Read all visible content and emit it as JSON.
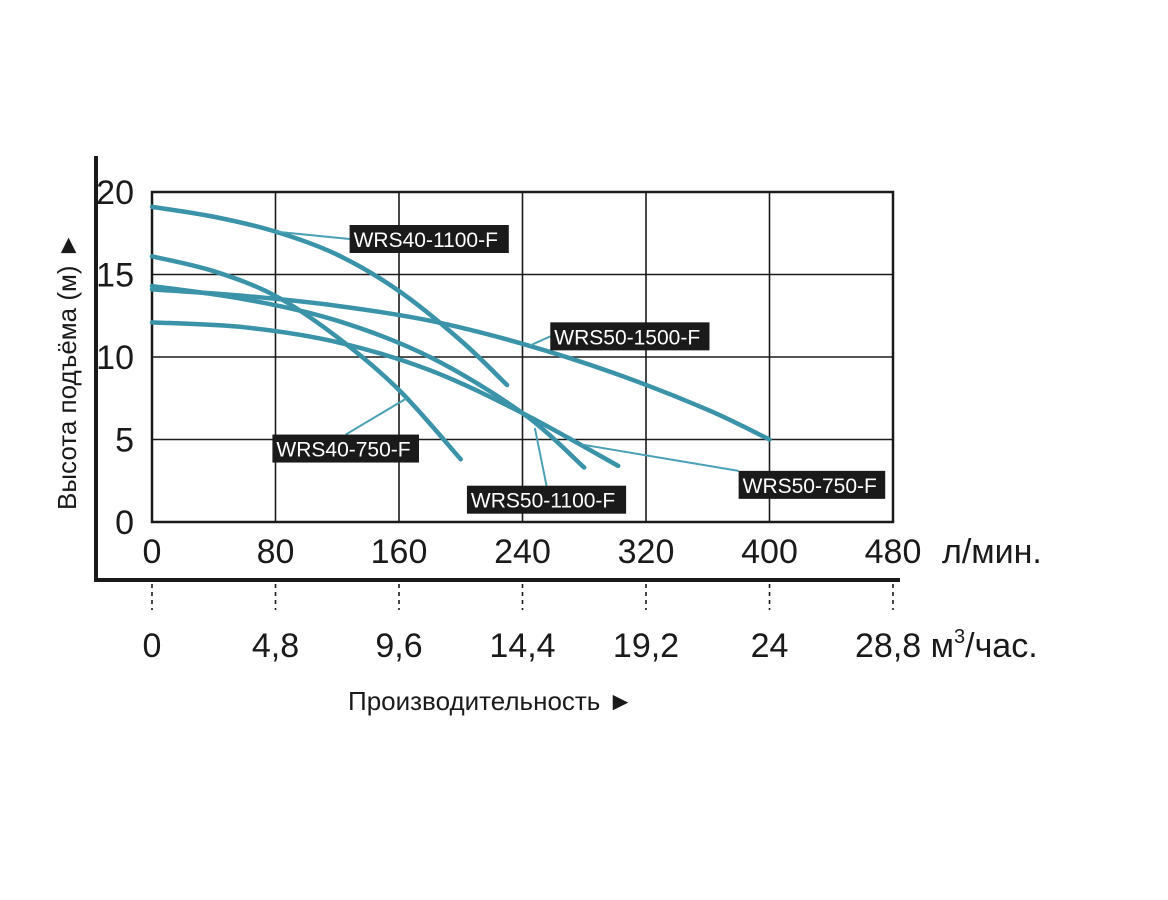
{
  "chart_data": {
    "type": "line",
    "xlabel": "Производительность ►",
    "ylabel": "Высота подъёма (м) ►",
    "x_unit": "л/мин.",
    "x2_unit_base": "28,8 м",
    "x2_unit_sup": "3",
    "x2_unit_tail": "/час.",
    "xlim": [
      0,
      480
    ],
    "ylim": [
      0,
      20
    ],
    "grid": true,
    "x_ticks": [
      "0",
      "80",
      "160",
      "240",
      "320",
      "400",
      "480"
    ],
    "x_tick_values": [
      0,
      80,
      160,
      240,
      320,
      400,
      480
    ],
    "x2_ticks": [
      "0",
      "4,8",
      "9,6",
      "14,4",
      "19,2",
      "24"
    ],
    "y_ticks": [
      "0",
      "5",
      "10",
      "15",
      "20"
    ],
    "y_tick_values": [
      0,
      5,
      10,
      15,
      20
    ],
    "curve_color": "#3a93a8",
    "series": [
      {
        "name": "WRS40-1100-F",
        "x": [
          0,
          40,
          80,
          120,
          160,
          200,
          230
        ],
        "y": [
          19.1,
          18.5,
          17.6,
          16.2,
          14.0,
          11.0,
          8.3
        ],
        "label_at": [
          80,
          17.6
        ],
        "label_pos": [
          128,
          18.0
        ]
      },
      {
        "name": "WRS50-1500-F",
        "x": [
          0,
          60,
          120,
          180,
          240,
          300,
          360,
          400
        ],
        "y": [
          14.1,
          13.7,
          13.1,
          12.2,
          10.8,
          9.0,
          6.8,
          5.0
        ],
        "label_at": [
          245,
          10.7
        ],
        "label_pos": [
          258,
          12.1
        ]
      },
      {
        "name": "WRS40-750-F",
        "x": [
          0,
          40,
          80,
          120,
          160,
          200
        ],
        "y": [
          16.1,
          15.2,
          13.7,
          11.2,
          8.0,
          3.8
        ],
        "label_at": [
          165,
          7.5
        ],
        "label_pos": [
          78,
          5.3
        ]
      },
      {
        "name": "WRS50-1100-F",
        "x": [
          0,
          60,
          120,
          180,
          240,
          280
        ],
        "y": [
          14.3,
          13.5,
          12.2,
          10.0,
          6.6,
          3.3
        ],
        "label_at": [
          248,
          5.7
        ],
        "label_pos": [
          204,
          2.2
        ]
      },
      {
        "name": "WRS50-750-F",
        "x": [
          0,
          60,
          120,
          180,
          240,
          302
        ],
        "y": [
          12.1,
          11.8,
          10.9,
          9.2,
          6.6,
          3.4
        ],
        "label_at": [
          278,
          4.7
        ],
        "label_pos": [
          380,
          3.1
        ]
      }
    ]
  }
}
